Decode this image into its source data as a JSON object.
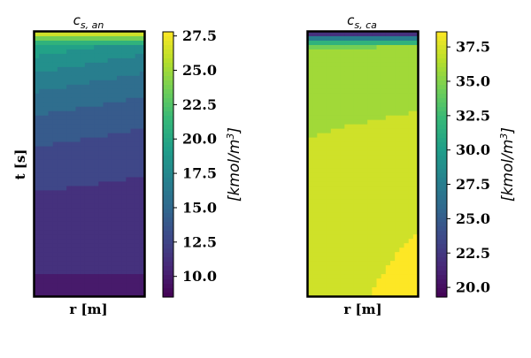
{
  "chart_data": [
    {
      "type": "heatmap",
      "title": "c_{s,an}",
      "title_main": "c",
      "title_sub": "s, an",
      "xlabel": "r [m]",
      "ylabel": "t [s]",
      "colormap": "viridis",
      "colorbar": {
        "label": "[kmol/m^3]",
        "label_main": "[kmol/m",
        "label_sup": "3",
        "label_end": "]",
        "range": [
          8.5,
          27.8
        ],
        "ticks": [
          10.0,
          12.5,
          15.0,
          17.5,
          20.0,
          22.5,
          25.0,
          27.5
        ],
        "tick_labels": [
          "10.0",
          "12.5",
          "15.0",
          "17.5",
          "20.0",
          "22.5",
          "25.0",
          "27.5"
        ]
      },
      "pattern": "top-high-decaying-down",
      "value_range": [
        8.5,
        27.8
      ]
    },
    {
      "type": "heatmap",
      "title": "c_{s,ca}",
      "title_main": "c",
      "title_sub": "s, ca",
      "xlabel": "r [m]",
      "ylabel": "",
      "colormap": "viridis",
      "colorbar": {
        "label": "[kmol/m^3]",
        "label_main": "[kmol/m",
        "label_sup": "3",
        "label_end": "]",
        "range": [
          19.3,
          38.6
        ],
        "ticks": [
          20.0,
          22.5,
          25.0,
          27.5,
          30.0,
          32.5,
          35.0,
          37.5
        ],
        "tick_labels": [
          "20.0",
          "22.5",
          "25.0",
          "27.5",
          "30.0",
          "32.5",
          "35.0",
          "37.5"
        ]
      },
      "pattern": "top-low-rising-down",
      "value_range": [
        19.3,
        38.6
      ]
    }
  ],
  "colors": {
    "viridis": [
      "#440154",
      "#482878",
      "#3e4989",
      "#31688e",
      "#26828e",
      "#1f9e89",
      "#35b779",
      "#6ece58",
      "#b5de2b",
      "#fde725"
    ]
  }
}
